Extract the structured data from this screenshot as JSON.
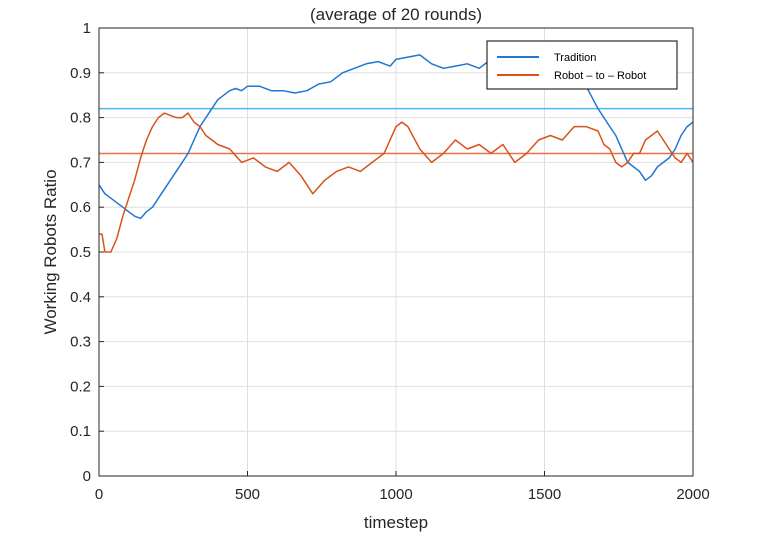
{
  "chart_data": {
    "type": "line",
    "title": "(average of 20 rounds)",
    "xlabel": "timestep",
    "ylabel": "Working Robots Ratio",
    "xlim": [
      0,
      2000
    ],
    "ylim": [
      0,
      1
    ],
    "xticks": [
      0,
      500,
      1000,
      1500,
      2000
    ],
    "yticks": [
      0,
      0.1,
      0.2,
      0.3,
      0.4,
      0.5,
      0.6,
      0.7,
      0.8,
      0.9,
      1
    ],
    "grid": true,
    "legend_position": "top-right",
    "series": [
      {
        "name": "Tradition",
        "color": "#1f77d0",
        "x": [
          0,
          20,
          40,
          60,
          80,
          100,
          120,
          140,
          160,
          180,
          200,
          220,
          240,
          260,
          280,
          300,
          320,
          340,
          360,
          380,
          400,
          420,
          440,
          460,
          480,
          500,
          540,
          580,
          620,
          660,
          700,
          740,
          780,
          820,
          860,
          900,
          940,
          980,
          1000,
          1040,
          1080,
          1120,
          1160,
          1200,
          1240,
          1280,
          1320,
          1360,
          1400,
          1440,
          1480,
          1520,
          1560,
          1600,
          1640,
          1680,
          1700,
          1720,
          1740,
          1760,
          1780,
          1800,
          1820,
          1840,
          1860,
          1880,
          1900,
          1920,
          1940,
          1960,
          1980,
          2000
        ],
        "y": [
          0.65,
          0.63,
          0.62,
          0.61,
          0.6,
          0.59,
          0.58,
          0.575,
          0.59,
          0.6,
          0.62,
          0.64,
          0.66,
          0.68,
          0.7,
          0.72,
          0.75,
          0.78,
          0.8,
          0.82,
          0.84,
          0.85,
          0.86,
          0.865,
          0.86,
          0.87,
          0.87,
          0.86,
          0.86,
          0.855,
          0.86,
          0.875,
          0.88,
          0.9,
          0.91,
          0.92,
          0.925,
          0.915,
          0.93,
          0.935,
          0.94,
          0.92,
          0.91,
          0.915,
          0.92,
          0.91,
          0.93,
          0.95,
          0.95,
          0.95,
          0.945,
          0.94,
          0.94,
          0.93,
          0.87,
          0.82,
          0.8,
          0.78,
          0.76,
          0.73,
          0.7,
          0.69,
          0.68,
          0.66,
          0.67,
          0.69,
          0.7,
          0.71,
          0.73,
          0.76,
          0.78,
          0.79
        ]
      },
      {
        "name": "Robot – to – Robot",
        "color": "#d95319",
        "x": [
          0,
          10,
          20,
          40,
          60,
          80,
          100,
          120,
          140,
          160,
          180,
          200,
          220,
          240,
          260,
          280,
          300,
          320,
          340,
          360,
          380,
          400,
          440,
          480,
          520,
          560,
          600,
          640,
          680,
          720,
          760,
          800,
          840,
          880,
          920,
          960,
          1000,
          1020,
          1040,
          1080,
          1120,
          1160,
          1200,
          1240,
          1280,
          1320,
          1360,
          1400,
          1440,
          1480,
          1520,
          1560,
          1600,
          1640,
          1680,
          1700,
          1720,
          1740,
          1760,
          1780,
          1800,
          1820,
          1840,
          1860,
          1880,
          1900,
          1920,
          1940,
          1960,
          1980,
          2000
        ],
        "y": [
          0.54,
          0.54,
          0.5,
          0.5,
          0.53,
          0.58,
          0.62,
          0.66,
          0.71,
          0.75,
          0.78,
          0.8,
          0.81,
          0.805,
          0.8,
          0.8,
          0.81,
          0.79,
          0.78,
          0.76,
          0.75,
          0.74,
          0.73,
          0.7,
          0.71,
          0.69,
          0.68,
          0.7,
          0.67,
          0.63,
          0.66,
          0.68,
          0.69,
          0.68,
          0.7,
          0.72,
          0.78,
          0.79,
          0.78,
          0.73,
          0.7,
          0.72,
          0.75,
          0.73,
          0.74,
          0.72,
          0.74,
          0.7,
          0.72,
          0.75,
          0.76,
          0.75,
          0.78,
          0.78,
          0.77,
          0.74,
          0.73,
          0.7,
          0.69,
          0.7,
          0.72,
          0.72,
          0.75,
          0.76,
          0.77,
          0.75,
          0.73,
          0.71,
          0.7,
          0.72,
          0.7
        ]
      }
    ],
    "reference_lines": [
      {
        "series": "Tradition",
        "y": 0.82,
        "color": "#4db8f0"
      },
      {
        "series": "Robot – to – Robot",
        "y": 0.72,
        "color": "#e8704a"
      }
    ]
  }
}
